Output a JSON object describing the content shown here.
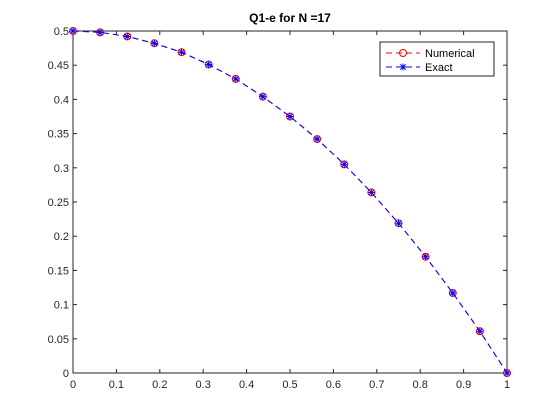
{
  "chart_data": {
    "type": "line",
    "title": "Q1-e for N =17",
    "xlabel": "",
    "ylabel": "",
    "xlim": [
      0,
      1
    ],
    "ylim": [
      0,
      0.5
    ],
    "xticks": [
      0,
      0.1,
      0.2,
      0.3,
      0.4,
      0.5,
      0.6,
      0.7,
      0.8,
      0.9,
      1
    ],
    "xtick_labels": [
      "0",
      "0.1",
      "0.2",
      "0.3",
      "0.4",
      "0.5",
      "0.6",
      "0.7",
      "0.8",
      "0.9",
      "1"
    ],
    "yticks": [
      0,
      0.05,
      0.1,
      0.15,
      0.2,
      0.25,
      0.3,
      0.35,
      0.4,
      0.45,
      0.5
    ],
    "ytick_labels": [
      "0",
      "0.05",
      "0.1",
      "0.15",
      "0.2",
      "0.25",
      "0.3",
      "0.35",
      "0.4",
      "0.45",
      "0.5"
    ],
    "grid": false,
    "legend_position": "top-right",
    "x": [
      0,
      0.0625,
      0.125,
      0.1875,
      0.25,
      0.3125,
      0.375,
      0.4375,
      0.5,
      0.5625,
      0.625,
      0.6875,
      0.75,
      0.8125,
      0.875,
      0.9375,
      1
    ],
    "series": [
      {
        "name": "Numerical",
        "color": "#ff0000",
        "line_style": "dashed",
        "marker": "circle",
        "values": [
          0.5,
          0.498,
          0.492,
          0.482,
          0.469,
          0.451,
          0.43,
          0.404,
          0.375,
          0.342,
          0.305,
          0.264,
          0.219,
          0.17,
          0.117,
          0.061,
          0
        ]
      },
      {
        "name": "Exact",
        "color": "#0000ff",
        "line_style": "dashed",
        "marker": "asterisk",
        "values": [
          0.5,
          0.498,
          0.492,
          0.482,
          0.469,
          0.451,
          0.43,
          0.404,
          0.375,
          0.342,
          0.305,
          0.264,
          0.219,
          0.17,
          0.117,
          0.061,
          0
        ]
      }
    ]
  }
}
